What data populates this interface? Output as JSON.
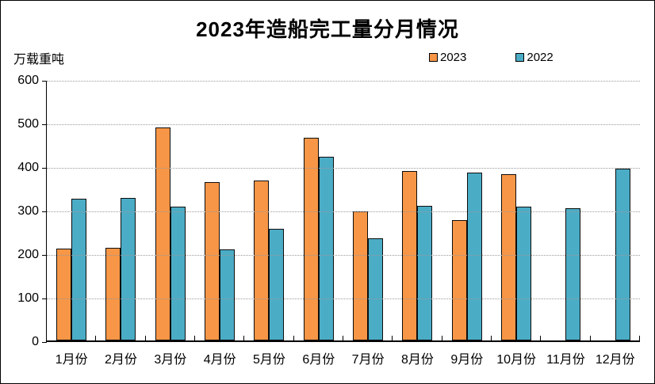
{
  "window": {
    "background": "#ffffff",
    "border_color": "#000000"
  },
  "chart_data": {
    "type": "bar",
    "title": "2023年造船完工量分月情况",
    "unit_label": "万载重吨",
    "xlabel": "",
    "ylabel": "万载重吨",
    "categories": [
      "1月份",
      "2月份",
      "3月份",
      "4月份",
      "5月份",
      "6月份",
      "7月份",
      "8月份",
      "9月份",
      "10月份",
      "11月份",
      "12月份"
    ],
    "series": [
      {
        "name": "2023",
        "color": "#F79646",
        "values": [
          211,
          212,
          490,
          363,
          368,
          465,
          296,
          389,
          277,
          381,
          null,
          null
        ]
      },
      {
        "name": "2022",
        "color": "#4BACC6",
        "values": [
          326,
          327,
          308,
          210,
          256,
          421,
          235,
          309,
          386,
          308,
          303,
          395
        ]
      }
    ],
    "ylim": [
      0,
      600
    ],
    "yticks": [
      0,
      100,
      200,
      300,
      400,
      500,
      600
    ],
    "grid": "horizontal-dotted",
    "legend_position": "top-right",
    "bar_border_color": "#0d0d0d",
    "gridline_color": "#9a9a9a"
  }
}
